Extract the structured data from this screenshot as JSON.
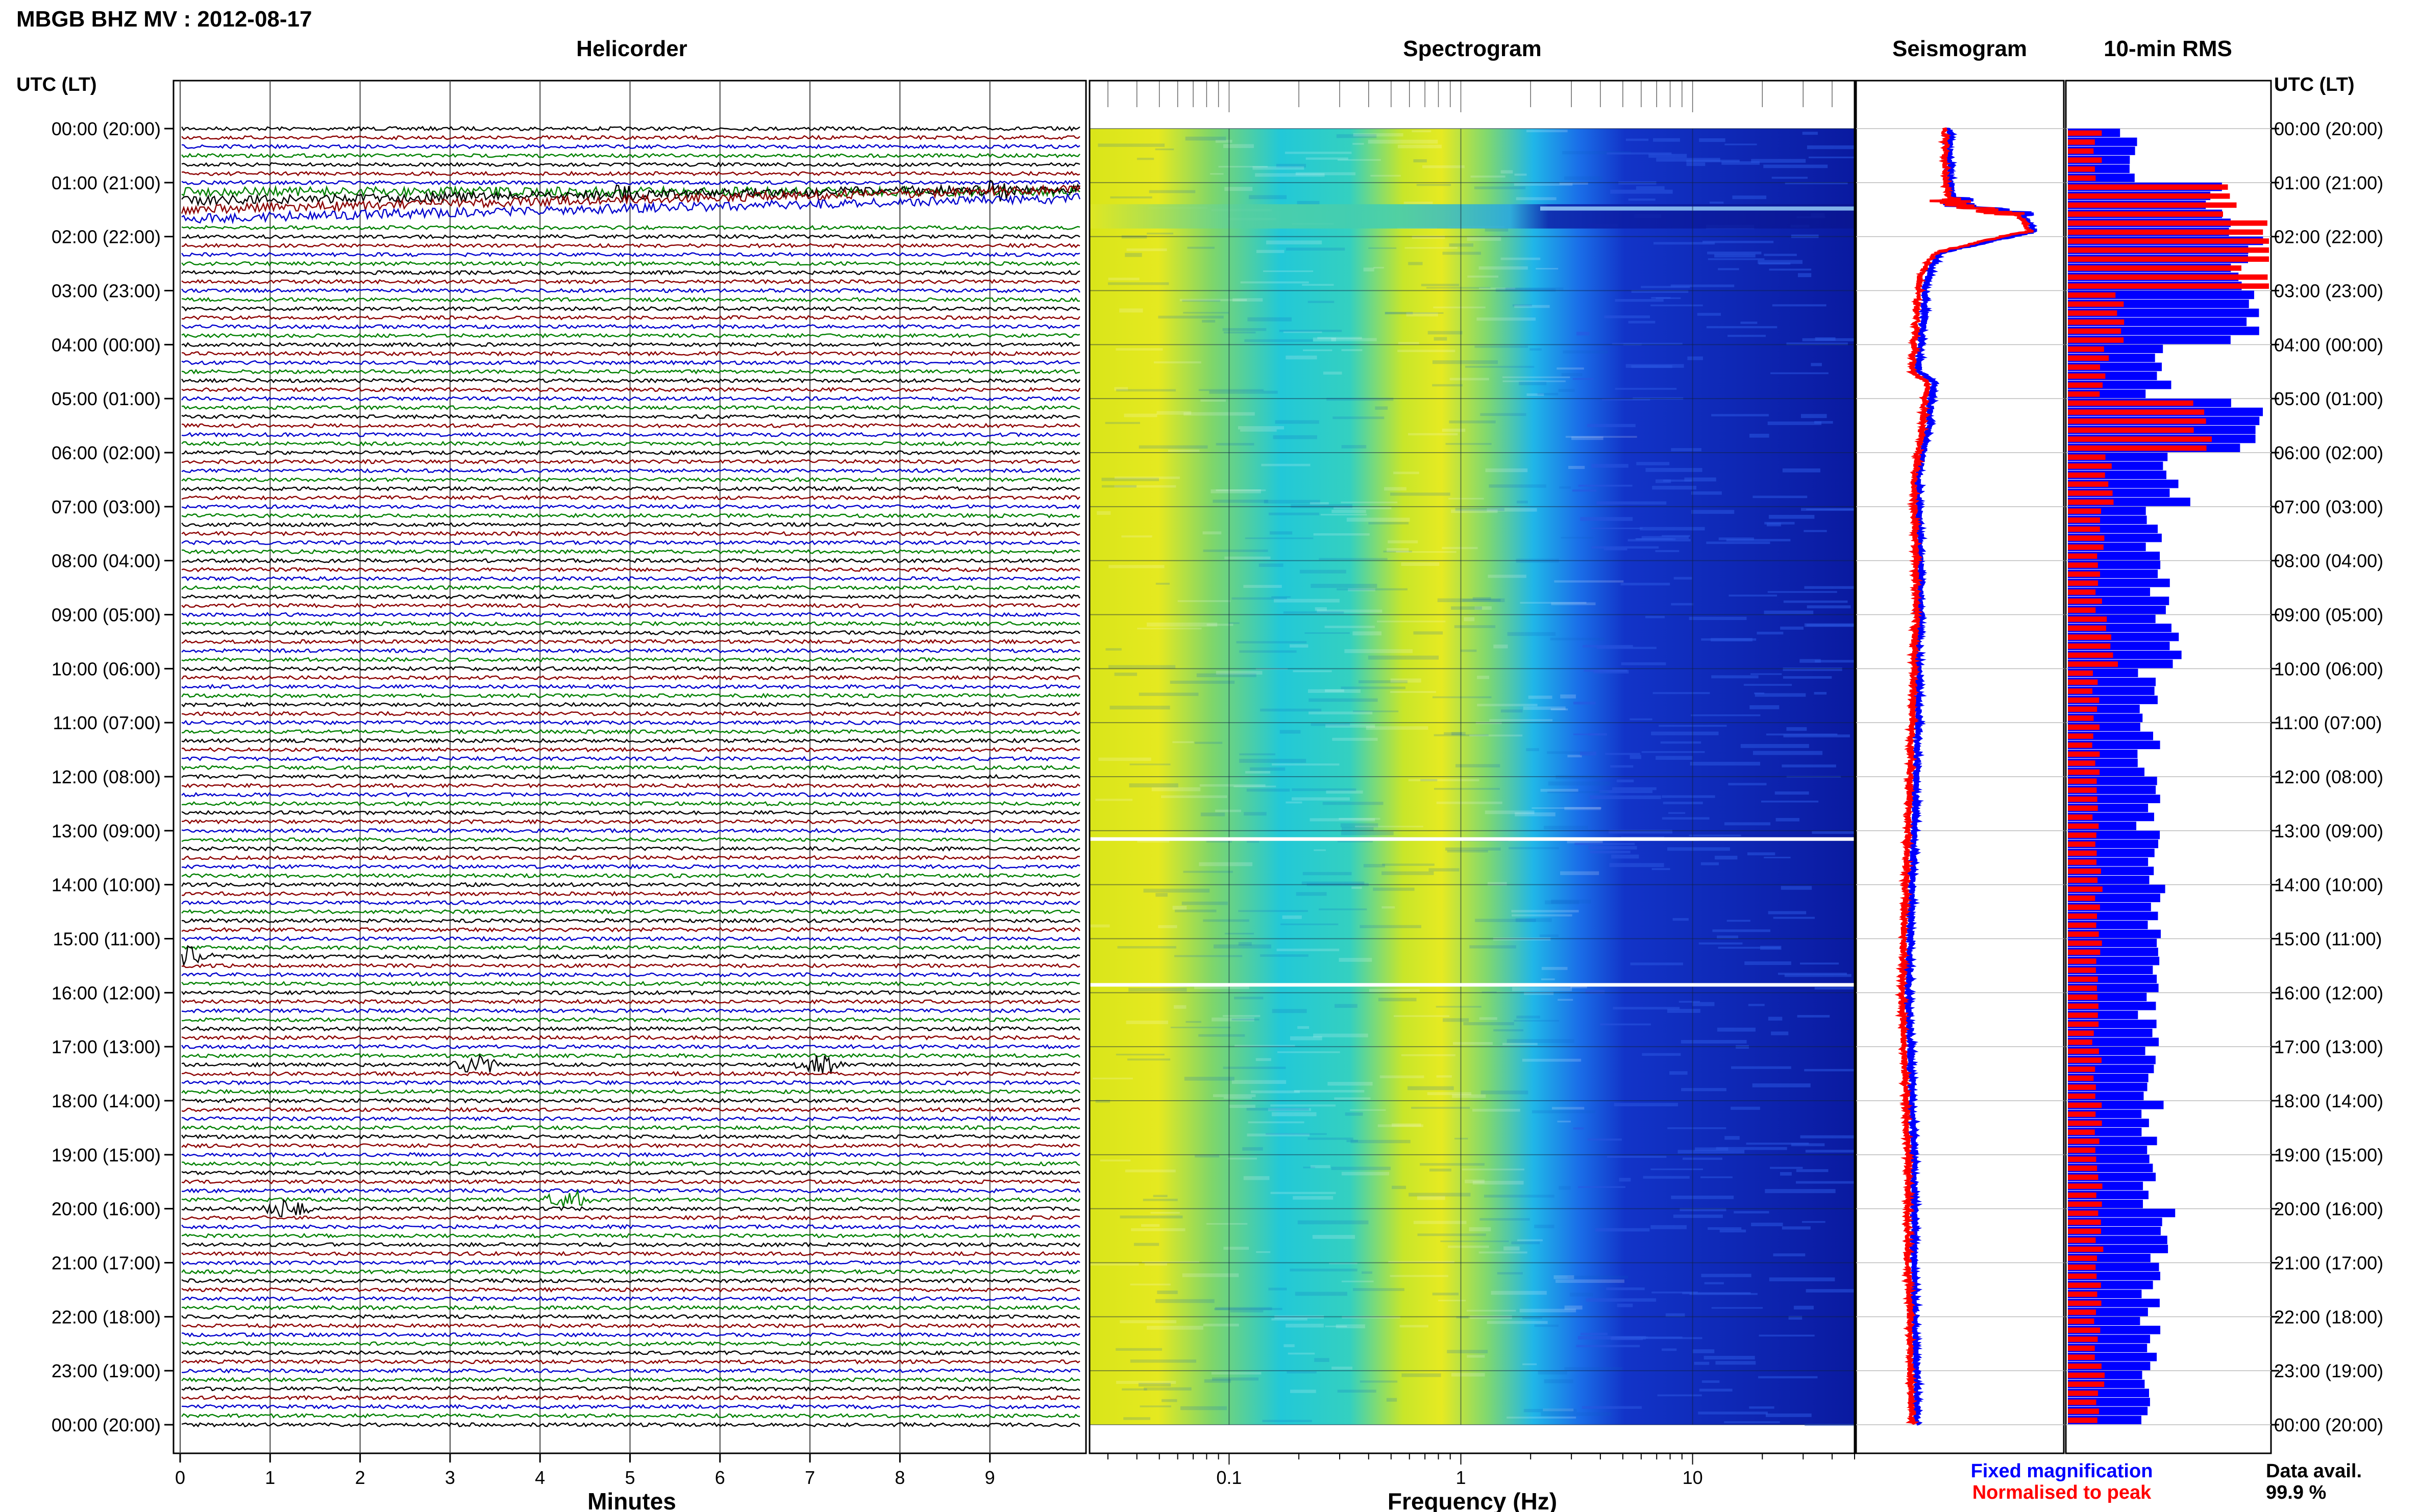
{
  "header": {
    "station_title": "MBGB BHZ MV : 2012-08-17",
    "panel_titles": [
      "Helicorder",
      "Spectrogram",
      "Seismogram",
      "10-min RMS"
    ],
    "time_axis_label": "UTC (LT)"
  },
  "chart_data": [
    {
      "type": "line",
      "name": "helicorder",
      "title": "Helicorder",
      "xlabel": "Minutes",
      "ylabel": "UTC (LT)",
      "xlim": [
        0,
        10
      ],
      "x_ticks": [
        "0",
        "1",
        "2",
        "3",
        "4",
        "5",
        "6",
        "7",
        "8",
        "9"
      ],
      "rows_per_hour": 6,
      "row_minutes": 10,
      "trace_colors": [
        "#000000",
        "#8b0000",
        "#0000cd",
        "#008000"
      ],
      "hour_labels": [
        "00:00 (20:00)",
        "01:00 (21:00)",
        "02:00 (22:00)",
        "03:00 (23:00)",
        "04:00 (00:00)",
        "05:00 (01:00)",
        "06:00 (02:00)",
        "07:00 (03:00)",
        "08:00 (04:00)",
        "09:00 (05:00)",
        "10:00 (06:00)",
        "11:00 (07:00)",
        "12:00 (08:00)",
        "13:00 (09:00)",
        "14:00 (10:00)",
        "15:00 (11:00)",
        "16:00 (12:00)",
        "17:00 (13:00)",
        "18:00 (14:00)",
        "19:00 (15:00)",
        "20:00 (16:00)",
        "21:00 (17:00)",
        "22:00 (18:00)",
        "23:00 (19:00)",
        "00:00 (20:00)"
      ],
      "events": [
        {
          "hour": 1.3,
          "minute": 4.9
        },
        {
          "hour": 1.4,
          "minute": 9.1
        },
        {
          "hour": 15.3,
          "minute": 0.1
        },
        {
          "hour": 17.3,
          "minute": 3.3
        },
        {
          "hour": 17.3,
          "minute": 7.1
        },
        {
          "hour": 20.0,
          "minute": 1.2
        },
        {
          "hour": 19.8,
          "minute": 4.3
        }
      ]
    },
    {
      "type": "heatmap",
      "name": "spectrogram",
      "title": "Spectrogram",
      "xlabel": "Frequency (Hz)",
      "x_scale": "log",
      "xlim": [
        0.025,
        50
      ],
      "x_ticks": [
        "0.1",
        "1",
        "10"
      ],
      "ylim_hours": [
        0,
        24
      ],
      "data_gaps_hours": [
        13.15,
        15.85
      ]
    },
    {
      "type": "line",
      "name": "seismogram",
      "title": "Seismogram",
      "series": [
        {
          "name": "Fixed magnification",
          "color": "#0000ff",
          "hours": [
            0,
            1,
            1.4,
            1.6,
            1.9,
            2.0,
            2.3,
            2.7,
            3.0,
            3.5,
            4.0,
            4.5,
            4.7,
            5.0,
            5.5,
            6.0,
            6.5,
            7.0,
            8.0,
            9.0,
            9.5,
            10,
            11,
            12,
            13,
            14,
            15,
            16,
            17,
            18,
            19,
            20,
            21,
            22,
            23,
            24
          ],
          "values": [
            0.45,
            0.45,
            0.48,
            0.8,
            0.86,
            0.74,
            0.4,
            0.35,
            0.33,
            0.33,
            0.31,
            0.3,
            0.38,
            0.36,
            0.35,
            0.32,
            0.3,
            0.3,
            0.31,
            0.31,
            0.3,
            0.3,
            0.3,
            0.29,
            0.28,
            0.27,
            0.26,
            0.25,
            0.26,
            0.27,
            0.28,
            0.28,
            0.28,
            0.28,
            0.29,
            0.29
          ]
        },
        {
          "name": "Normalised to peak",
          "color": "#ff0000",
          "hours": [
            0,
            1,
            1.4,
            1.6,
            1.9,
            2.0,
            2.3,
            2.7,
            3.0,
            3.5,
            4.0,
            4.5,
            4.7,
            5.0,
            5.5,
            6.0,
            6.5,
            7.0,
            8.0,
            9.0,
            9.5,
            10,
            11,
            12,
            13,
            14,
            15,
            16,
            17,
            18,
            19,
            20,
            21,
            22,
            23,
            24
          ],
          "values": [
            0.43,
            0.43,
            0.46,
            0.78,
            0.84,
            0.7,
            0.38,
            0.31,
            0.3,
            0.29,
            0.28,
            0.27,
            0.35,
            0.33,
            0.32,
            0.3,
            0.28,
            0.28,
            0.29,
            0.29,
            0.28,
            0.28,
            0.27,
            0.26,
            0.25,
            0.24,
            0.23,
            0.22,
            0.23,
            0.24,
            0.25,
            0.25,
            0.25,
            0.26,
            0.26,
            0.27
          ]
        }
      ]
    },
    {
      "type": "bar",
      "name": "rms",
      "title": "10-min RMS",
      "orientation": "horizontal",
      "bin_minutes": 10,
      "series": [
        {
          "name": "Fixed magnification",
          "color": "#0000ff"
        },
        {
          "name": "Normalised to peak",
          "color": "#ff0000"
        }
      ],
      "hourly_blue": [
        0.3,
        0.8,
        0.95,
        0.9,
        0.45,
        0.9,
        0.55,
        0.45,
        0.45,
        0.5,
        0.4,
        0.4,
        0.4,
        0.42,
        0.45,
        0.45,
        0.4,
        0.42,
        0.42,
        0.42,
        0.48,
        0.42,
        0.4,
        0.42
      ],
      "hourly_red": [
        0.15,
        0.9,
        0.95,
        0.25,
        0.18,
        0.7,
        0.2,
        0.16,
        0.15,
        0.22,
        0.14,
        0.14,
        0.14,
        0.15,
        0.15,
        0.15,
        0.14,
        0.15,
        0.15,
        0.15,
        0.16,
        0.15,
        0.15,
        0.16
      ]
    }
  ],
  "legend": {
    "fixed_label": "Fixed magnification",
    "fixed_color": "#0000ff",
    "peak_label": "Normalised to peak",
    "peak_color": "#ff0000"
  },
  "availability": {
    "label": "Data avail.",
    "value": "99.9 %"
  }
}
